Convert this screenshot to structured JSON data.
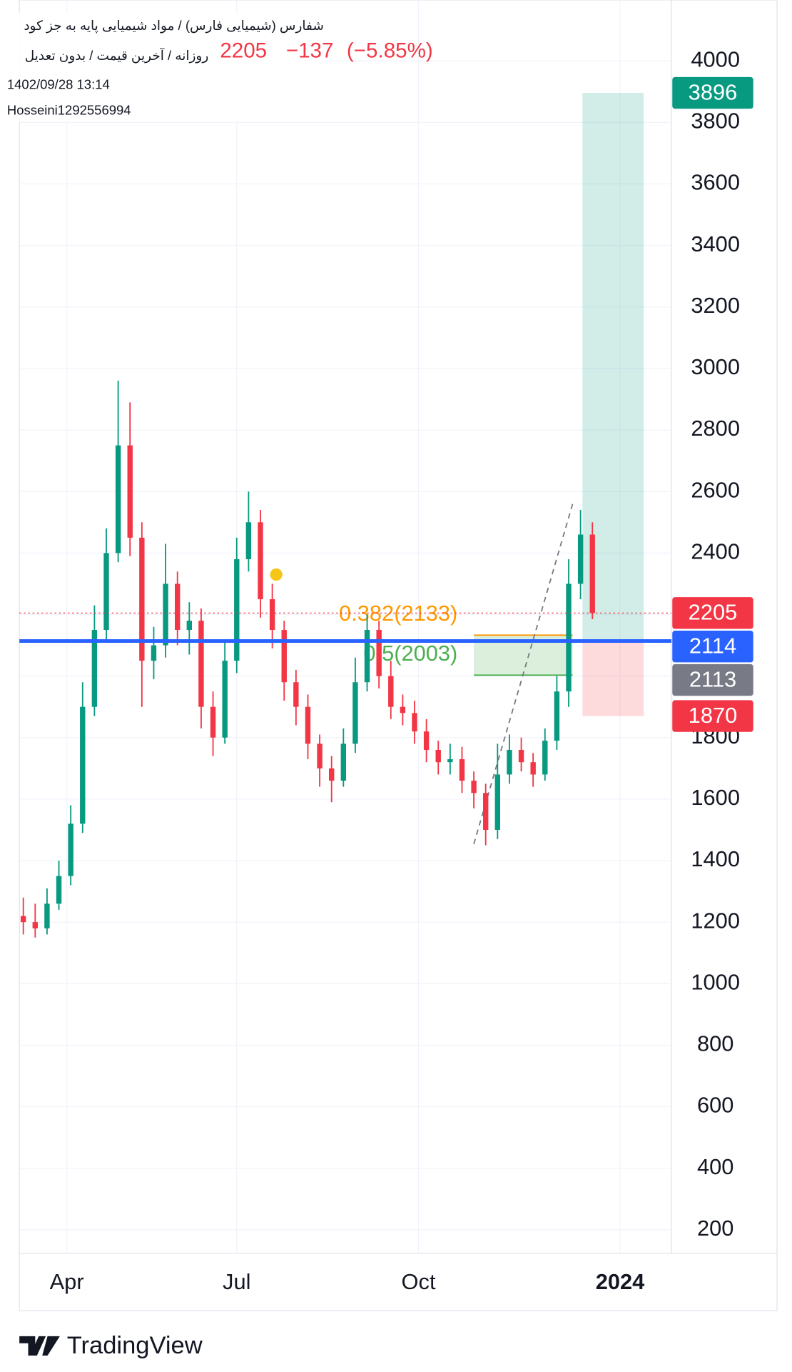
{
  "chart_data": {
    "type": "candlestick",
    "title": "شفارس (شیمیایی فارس) / مواد شیمیایی پایه به جز کود",
    "subtitle": "روزانه / آخرین قیمت / بدون تعدیل",
    "quote": [
      "2205",
      "−137",
      "(−5.85%)"
    ],
    "timestamp": "1402/09/28 13:14",
    "author": "Hosseini1292556994",
    "brand": "TradingView",
    "xlim": [
      0,
      165
    ],
    "ylim": [
      123,
      4198
    ],
    "grid": true,
    "xticks": [
      {
        "value": 12,
        "label": "Apr"
      },
      {
        "value": 55,
        "label": "Jul"
      },
      {
        "value": 101,
        "label": "Oct"
      },
      {
        "value": 152,
        "label": "2024"
      }
    ],
    "yticks": [
      200,
      400,
      600,
      800,
      1000,
      1200,
      1400,
      1600,
      1800,
      2000,
      2200,
      2400,
      2600,
      2800,
      3000,
      3200,
      3400,
      3600,
      3800,
      4000
    ],
    "up_color": "#089981",
    "down_color": "#f23645",
    "candles": {
      "x": [
        1,
        4,
        7,
        10,
        13,
        16,
        19,
        22,
        25,
        28,
        31,
        34,
        37,
        40,
        43,
        46,
        49,
        52,
        55,
        58,
        61,
        64,
        67,
        70,
        73,
        76,
        79,
        82,
        85,
        88,
        91,
        94,
        97,
        100,
        103,
        106,
        109,
        112,
        115,
        118,
        121,
        124,
        127,
        130,
        133,
        136,
        139,
        142,
        145
      ],
      "open": [
        1220,
        1200,
        1180,
        1260,
        1350,
        1520,
        1900,
        2150,
        2400,
        2750,
        2450,
        2050,
        2100,
        2300,
        2150,
        2180,
        1900,
        1800,
        2050,
        2380,
        2500,
        2250,
        2150,
        1980,
        1900,
        1780,
        1700,
        1660,
        1780,
        1980,
        2150,
        2000,
        1900,
        1880,
        1820,
        1760,
        1720,
        1730,
        1660,
        1620,
        1500,
        1680,
        1760,
        1720,
        1680,
        1790,
        1950,
        2300,
        2460
      ],
      "high": [
        1280,
        1260,
        1310,
        1400,
        1580,
        1980,
        2230,
        2480,
        2960,
        2890,
        2500,
        2160,
        2430,
        2340,
        2240,
        2220,
        1950,
        2110,
        2450,
        2600,
        2540,
        2300,
        2180,
        2020,
        1940,
        1810,
        1740,
        1830,
        2060,
        2200,
        2180,
        2050,
        1940,
        1920,
        1860,
        1790,
        1780,
        1770,
        1690,
        1650,
        1780,
        1810,
        1800,
        1750,
        1830,
        2000,
        2380,
        2540,
        2500
      ],
      "low": [
        1160,
        1150,
        1160,
        1240,
        1320,
        1490,
        1870,
        2110,
        2370,
        2390,
        1900,
        1990,
        2060,
        2100,
        2070,
        1830,
        1740,
        1780,
        2010,
        2340,
        2190,
        2090,
        1920,
        1840,
        1730,
        1640,
        1590,
        1640,
        1750,
        1950,
        1960,
        1860,
        1840,
        1780,
        1720,
        1680,
        1680,
        1620,
        1570,
        1450,
        1470,
        1650,
        1690,
        1640,
        1660,
        1760,
        1900,
        2250,
        2185
      ],
      "close": [
        1200,
        1180,
        1260,
        1350,
        1520,
        1900,
        2150,
        2400,
        2750,
        2450,
        2050,
        2100,
        2300,
        2150,
        2180,
        1900,
        1800,
        2050,
        2380,
        2500,
        2250,
        2150,
        1980,
        1900,
        1780,
        1700,
        1660,
        1780,
        1980,
        2150,
        2000,
        1900,
        1880,
        1820,
        1760,
        1720,
        1730,
        1660,
        1620,
        1500,
        1680,
        1760,
        1720,
        1680,
        1790,
        1950,
        2300,
        2460,
        2205
      ]
    },
    "horizontal_line": {
      "value": 2114,
      "color": "#2962ff"
    },
    "last_price_line": {
      "value": 2205,
      "color": "#f23645"
    },
    "fib": {
      "x": [
        115,
        140
      ],
      "levels": [
        {
          "label": "0.382(2133)",
          "value": 2133,
          "color": "#ff9800"
        },
        {
          "label": "0.5(2003)",
          "value": 2003,
          "color": "#4caf50"
        }
      ]
    },
    "trendline": {
      "x": [
        115,
        140
      ],
      "y": [
        1454,
        2560
      ]
    },
    "marker": {
      "x": 65,
      "y": 2330,
      "color": "#f5c518"
    },
    "position": {
      "x": [
        142.5,
        158
      ],
      "entry": 2114,
      "target": 3896,
      "stop": 1870
    },
    "price_labels": [
      {
        "value": 3896,
        "color": "#089981"
      },
      {
        "value": 2205,
        "color": "#f23645"
      },
      {
        "value": 2114,
        "color": "#2962ff"
      },
      {
        "value": 2113,
        "color": "#787b86"
      },
      {
        "value": 1870,
        "color": "#f23645"
      }
    ]
  }
}
